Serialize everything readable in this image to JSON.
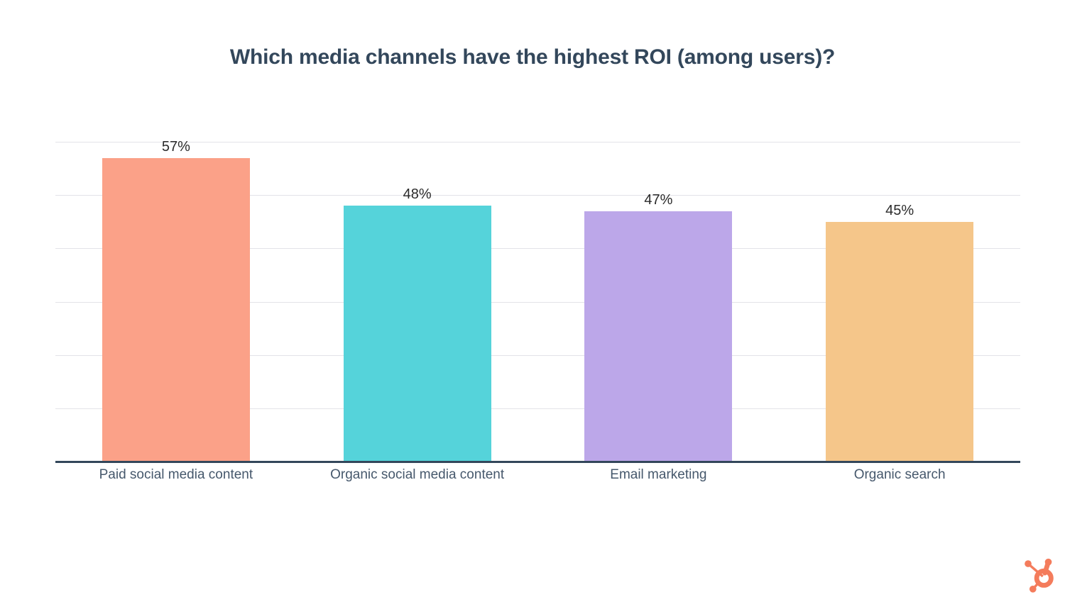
{
  "chart_data": {
    "type": "bar",
    "title": "Which media channels have the highest ROI (among users)?",
    "categories": [
      "Paid social media content",
      "Organic social media content",
      "Email marketing",
      "Organic search"
    ],
    "values": [
      57,
      48,
      47,
      45
    ],
    "value_labels": [
      "57%",
      "48%",
      "47%",
      "45%"
    ],
    "series_colors": [
      "#FBA188",
      "#55D3DA",
      "#BCA7E9",
      "#F5C68A"
    ],
    "ylim": [
      0,
      60
    ],
    "gridline_percents": [
      10,
      20,
      30,
      40,
      50,
      60
    ],
    "xlabel": "",
    "ylabel": "",
    "legend": false,
    "grid": true
  },
  "colors": {
    "background": "#FFFFFF",
    "title": "#33475B",
    "axis_line": "#33475B",
    "gridline": "#E3E3E8",
    "value_label": "#2B2B2B",
    "category_label": "#46586C",
    "logo": "#F47C5C"
  },
  "branding": {
    "logo_name": "hubspot-sprocket-icon"
  }
}
